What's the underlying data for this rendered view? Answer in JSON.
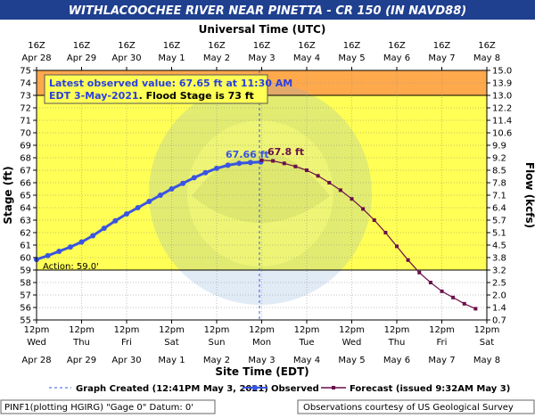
{
  "colors": {
    "title_bg": "#1f3f8f",
    "title_fg": "#ffffff",
    "plot_zone": "#ffff55",
    "flood_zone": "#ffa94d",
    "normal_zone": "#ffffff",
    "observed": "#3a55e0",
    "forecast": "#6a0f4a",
    "grid": "#888888"
  },
  "chart_data": {
    "type": "line",
    "title": "WITHLACOOCHEE RIVER NEAR PINETTA - CR 150 (IN NAVD88)",
    "top_axis_title": "Universal Time (UTC)",
    "xlabel": "Site Time (EDT)",
    "ylabel": "Stage (ft)",
    "ylabel_right": "Flow (kcfs)",
    "ylim": [
      55,
      75
    ],
    "xlim_days": [
      0,
      10
    ],
    "x_origin": "Apr 28 12pm EDT",
    "top_ticks": [
      {
        "t": "16Z",
        "d": "Apr 28"
      },
      {
        "t": "16Z",
        "d": "Apr 29"
      },
      {
        "t": "16Z",
        "d": "Apr 30"
      },
      {
        "t": "16Z",
        "d": "May 1"
      },
      {
        "t": "16Z",
        "d": "May 2"
      },
      {
        "t": "16Z",
        "d": "May 3"
      },
      {
        "t": "16Z",
        "d": "May 4"
      },
      {
        "t": "16Z",
        "d": "May 5"
      },
      {
        "t": "16Z",
        "d": "May 6"
      },
      {
        "t": "16Z",
        "d": "May 7"
      },
      {
        "t": "16Z",
        "d": "May 8"
      }
    ],
    "bottom_ticks": [
      {
        "t": "12pm",
        "w": "Wed",
        "d": "Apr 28"
      },
      {
        "t": "12pm",
        "w": "Thu",
        "d": "Apr 29"
      },
      {
        "t": "12pm",
        "w": "Fri",
        "d": "Apr 30"
      },
      {
        "t": "12pm",
        "w": "Sat",
        "d": "May 1"
      },
      {
        "t": "12pm",
        "w": "Sun",
        "d": "May 2"
      },
      {
        "t": "12pm",
        "w": "Mon",
        "d": "May 3"
      },
      {
        "t": "12pm",
        "w": "Tue",
        "d": "May 4"
      },
      {
        "t": "12pm",
        "w": "Wed",
        "d": "May 5"
      },
      {
        "t": "12pm",
        "w": "Thu",
        "d": "May 6"
      },
      {
        "t": "12pm",
        "w": "Fri",
        "d": "May 7"
      },
      {
        "t": "12pm",
        "w": "Sat",
        "d": "May 8"
      }
    ],
    "y_ticks": [
      55,
      56,
      57,
      58,
      59,
      60,
      61,
      62,
      63,
      64,
      65,
      66,
      67,
      68,
      69,
      70,
      71,
      72,
      73,
      74,
      75
    ],
    "flow_ticks": [
      "0.7",
      "1.4",
      "2.0",
      "2.5",
      "3.2",
      "3.8",
      "4.5",
      "5.1",
      "5.7",
      "6.4",
      "7.1",
      "7.8",
      "8.5",
      "9.2",
      "9.9",
      "10.6",
      "11.4",
      "12.2",
      "13.0",
      "13.9",
      "15.0"
    ],
    "action_stage": 59,
    "flood_stage": 73,
    "action_label": "Action:  59.0'",
    "graph_created_day": 4.95,
    "observed_label": "67.66 ft",
    "forecast_label": "67.8 ft",
    "annotation_line1": "Latest observed value: 67.65 ft at 11:30 AM",
    "annotation_line2": "EDT 3-May-2021",
    "annotation_line3": ". Flood Stage is 73 ft",
    "observed": {
      "x": [
        0,
        0.25,
        0.5,
        0.75,
        1,
        1.25,
        1.5,
        1.75,
        2,
        2.25,
        2.5,
        2.75,
        3,
        3.25,
        3.5,
        3.75,
        4,
        4.25,
        4.5,
        4.75,
        4.98
      ],
      "y": [
        59.85,
        60.15,
        60.5,
        60.85,
        61.25,
        61.75,
        62.35,
        62.95,
        63.5,
        64.0,
        64.5,
        65.0,
        65.5,
        65.95,
        66.4,
        66.8,
        67.15,
        67.4,
        67.55,
        67.62,
        67.66
      ]
    },
    "forecast": {
      "x": [
        5.0,
        5.25,
        5.5,
        5.75,
        6.0,
        6.25,
        6.5,
        6.75,
        7.0,
        7.25,
        7.5,
        7.75,
        8.0,
        8.25,
        8.5,
        8.75,
        9.0,
        9.25,
        9.5,
        9.75
      ],
      "y": [
        67.8,
        67.75,
        67.55,
        67.3,
        67.0,
        66.55,
        66.0,
        65.4,
        64.7,
        63.9,
        63.0,
        62.0,
        60.9,
        59.8,
        58.8,
        58.0,
        57.3,
        56.8,
        56.3,
        55.9
      ]
    }
  },
  "footer": {
    "graph_created": "Graph Created (12:41PM May 3, 2021)",
    "observed_legend": "Observed",
    "forecast_legend": "Forecast (issued 9:32AM May 3)",
    "site_info": "PINF1(plotting HGIRG) \"Gage 0\" Datum: 0'",
    "credit": "Observations courtesy of US Geological Survey"
  }
}
